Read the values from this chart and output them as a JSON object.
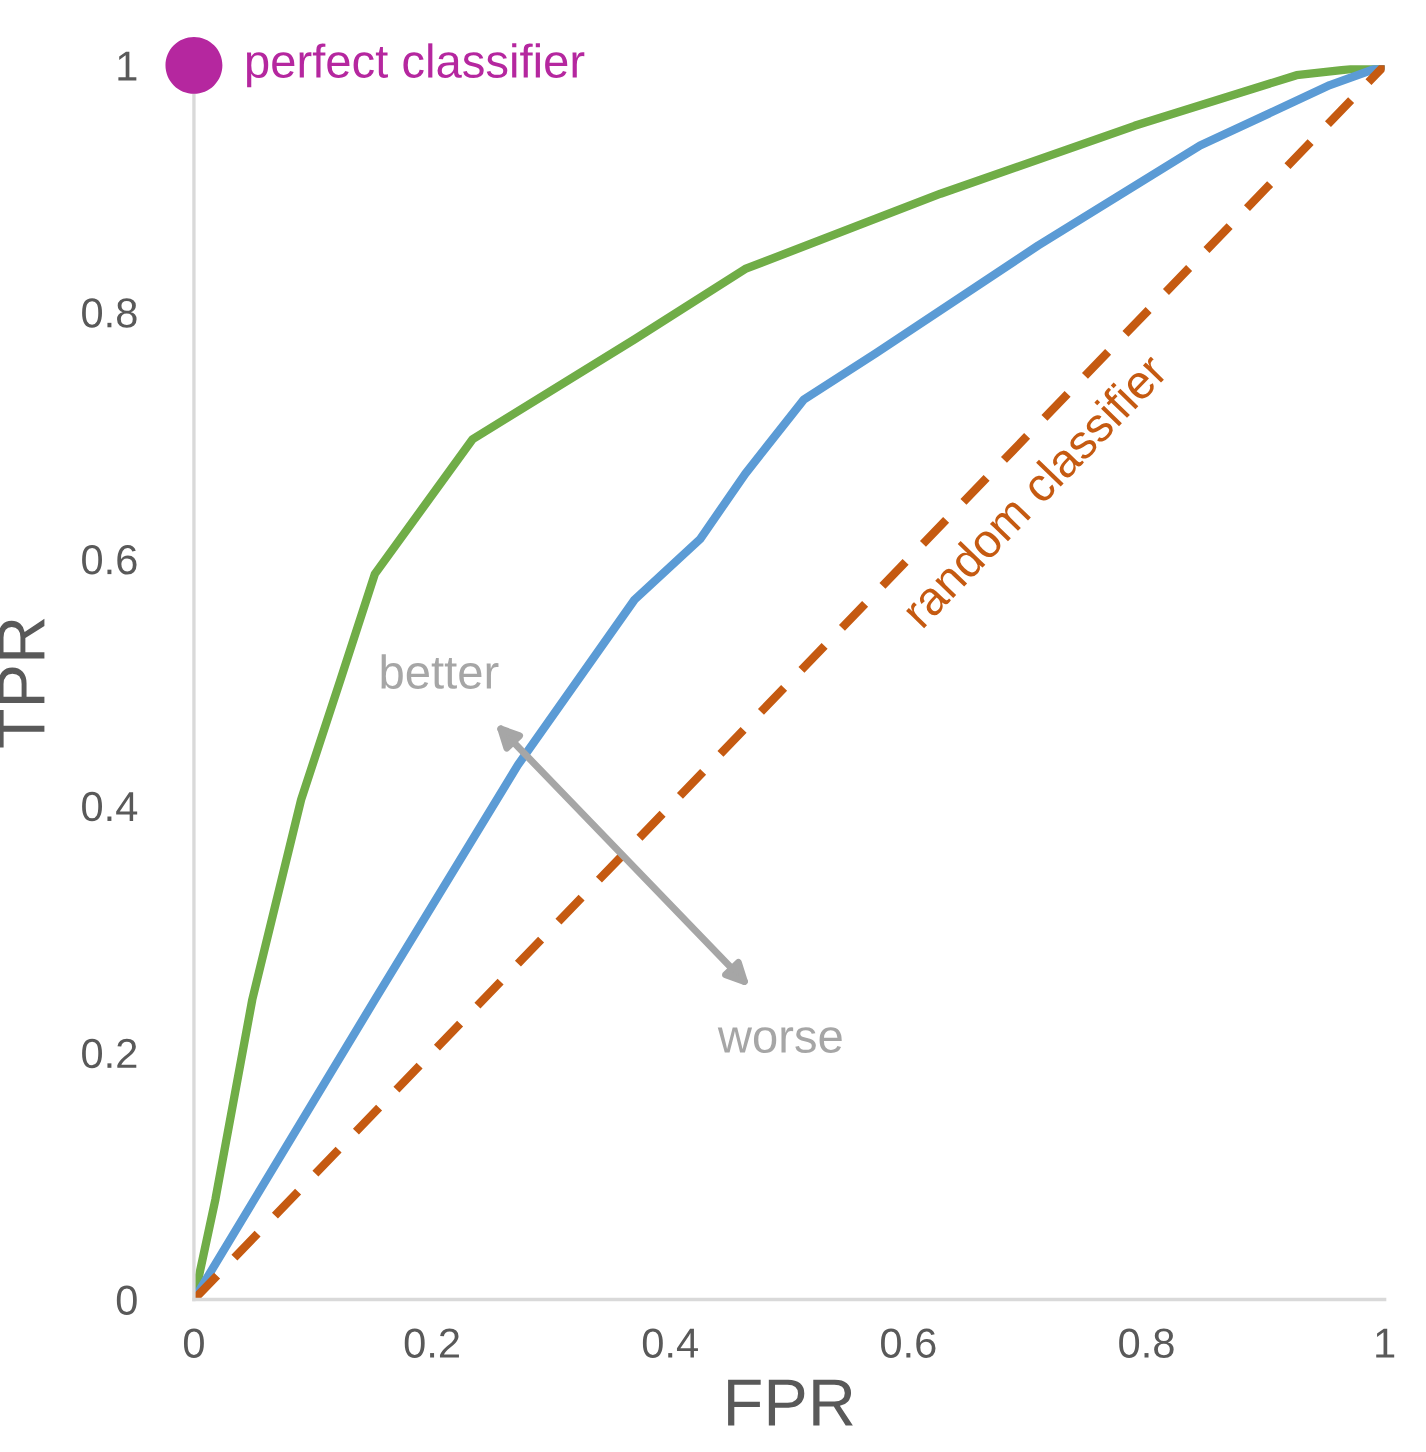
{
  "chart_data": {
    "type": "line",
    "xlabel": "FPR",
    "ylabel": "TPR",
    "series": [
      {
        "color": "#70ad47",
        "x": [
          0,
          0.018,
          0.049,
          0.09,
          0.123,
          0.152,
          0.234,
          0.37,
          0.463,
          0.627,
          0.79,
          0.926,
          1
        ],
        "values": [
          0,
          0.081,
          0.243,
          0.405,
          0.502,
          0.588,
          0.697,
          0.778,
          0.835,
          0.896,
          0.951,
          0.992,
          1
        ]
      },
      {
        "color": "#5b9bd5",
        "x": [
          0,
          0.152,
          0.272,
          0.37,
          0.425,
          0.463,
          0.512,
          0.573,
          0.709,
          0.845,
          0.954,
          1
        ],
        "values": [
          0,
          0.243,
          0.433,
          0.567,
          0.616,
          0.669,
          0.729,
          0.767,
          0.854,
          0.935,
          0.984,
          1
        ]
      },
      {
        "name": "random classifier",
        "color": "#c55a11",
        "line_style": "dashed",
        "x": [
          0,
          1
        ],
        "values": [
          0,
          1
        ]
      },
      {
        "name": "perfect classifier",
        "type": "scatter",
        "marker": "circle",
        "color": "#b5279f",
        "x": [
          0
        ],
        "values": [
          1
        ]
      }
    ],
    "annotations": [
      "better",
      "worse"
    ],
    "xlim": [
      0,
      1
    ],
    "ylim": [
      0,
      1
    ],
    "xticks": [
      0,
      0.2,
      0.4,
      0.6,
      0.8,
      1
    ],
    "yticks": [
      0,
      0.2,
      0.4,
      0.6,
      0.8,
      1
    ],
    "grid": false,
    "legend": false
  }
}
